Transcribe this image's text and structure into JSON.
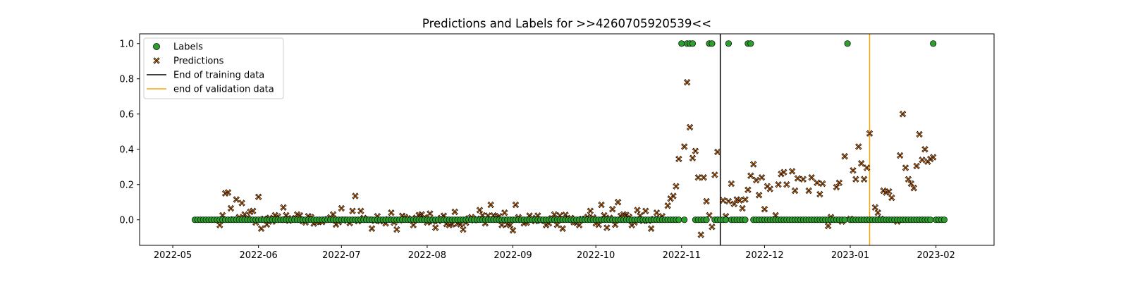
{
  "chart_data": {
    "type": "scatter",
    "title": "Predictions and Labels for >>4260705920539<<",
    "xlabel": "",
    "ylabel": "",
    "x_axis": {
      "type": "date",
      "range": [
        "2022-04-19",
        "2023-02-22"
      ],
      "tick_values": [
        "2022-05-01",
        "2022-06-01",
        "2022-07-01",
        "2022-08-01",
        "2022-09-01",
        "2022-10-01",
        "2022-11-01",
        "2022-12-01",
        "2023-01-01",
        "2023-02-01"
      ],
      "tick_labels": [
        "2022-05",
        "2022-06",
        "2022-07",
        "2022-08",
        "2022-09",
        "2022-10",
        "2022-11",
        "2022-12",
        "2023-01",
        "2023-02"
      ]
    },
    "y_axis": {
      "range": [
        -0.145,
        1.055
      ],
      "tick_values": [
        0.0,
        0.2,
        0.4,
        0.6,
        0.8,
        1.0
      ],
      "tick_labels": [
        "0.0",
        "0.2",
        "0.4",
        "0.6",
        "0.8",
        "1.0"
      ]
    },
    "grid": false,
    "legend_position": "upper-left",
    "legend": [
      {
        "label": "Labels",
        "marker": "circle",
        "color": "#2ca02c"
      },
      {
        "label": "Predictions",
        "marker": "x",
        "color": "#ff7f0e"
      },
      {
        "label": "End of training data",
        "marker": "line",
        "color": "#000000"
      },
      {
        "label": "end of validation data",
        "marker": "line",
        "color": "#ffa500"
      }
    ],
    "labels_series": {
      "start_date": "2022-05-09",
      "end_date": "2023-02-04",
      "baseline_value": 0,
      "points": [
        {
          "date": "2022-11-01",
          "value": 1
        },
        {
          "date": "2022-11-03",
          "value": 1
        },
        {
          "date": "2022-11-04",
          "value": 1
        },
        {
          "date": "2022-11-05",
          "value": 1
        },
        {
          "date": "2022-11-11",
          "value": 1
        },
        {
          "date": "2022-11-12",
          "value": 1
        },
        {
          "date": "2022-11-18",
          "value": 1
        },
        {
          "date": "2022-11-25",
          "value": 1
        },
        {
          "date": "2022-11-26",
          "value": 1
        },
        {
          "date": "2022-12-31",
          "value": 1
        },
        {
          "date": "2023-01-31",
          "value": 1
        }
      ]
    },
    "predictions_series": [
      [
        "2022-05-20",
        0.15
      ],
      [
        "2022-05-21",
        0.155
      ],
      [
        "2022-05-22",
        0.065
      ],
      [
        "2022-05-24",
        0.115
      ],
      [
        "2022-05-26",
        0.095
      ],
      [
        "2022-05-27",
        0.03
      ],
      [
        "2022-05-29",
        0.045
      ],
      [
        "2022-05-30",
        0.05
      ],
      [
        "2022-06-01",
        0.13
      ],
      [
        "2022-06-02",
        -0.05
      ],
      [
        "2022-06-03",
        0.005
      ],
      [
        "2022-06-06",
        -0.01
      ],
      [
        "2022-06-09",
        0.0
      ],
      [
        "2022-06-10",
        0.07
      ],
      [
        "2022-06-12",
        -0.005
      ],
      [
        "2022-06-15",
        0.03
      ],
      [
        "2022-06-18",
        -0.015
      ],
      [
        "2022-06-20",
        0.015
      ],
      [
        "2022-06-23",
        -0.01
      ],
      [
        "2022-06-25",
        0.0
      ],
      [
        "2022-06-28",
        0.03
      ],
      [
        "2022-07-01",
        0.065
      ],
      [
        "2022-07-03",
        -0.005
      ],
      [
        "2022-07-05",
        0.05
      ],
      [
        "2022-07-06",
        0.135
      ],
      [
        "2022-07-08",
        0.05
      ],
      [
        "2022-07-10",
        0.0
      ],
      [
        "2022-07-12",
        -0.05
      ],
      [
        "2022-07-14",
        0.02
      ],
      [
        "2022-07-17",
        -0.02
      ],
      [
        "2022-07-19",
        0.04
      ],
      [
        "2022-07-21",
        -0.055
      ],
      [
        "2022-07-24",
        0.015
      ],
      [
        "2022-07-27",
        -0.03
      ],
      [
        "2022-07-30",
        0.03
      ],
      [
        "2022-08-02",
        0.035
      ],
      [
        "2022-08-04",
        -0.045
      ],
      [
        "2022-08-06",
        0.01
      ],
      [
        "2022-08-09",
        -0.03
      ],
      [
        "2022-08-11",
        0.045
      ],
      [
        "2022-08-14",
        -0.055
      ],
      [
        "2022-08-17",
        0.015
      ],
      [
        "2022-08-20",
        0.055
      ],
      [
        "2022-08-22",
        -0.02
      ],
      [
        "2022-08-24",
        0.085
      ],
      [
        "2022-08-27",
        0.02
      ],
      [
        "2022-08-29",
        0.04
      ],
      [
        "2022-09-01",
        -0.06
      ],
      [
        "2022-09-02",
        0.085
      ],
      [
        "2022-09-05",
        -0.02
      ],
      [
        "2022-09-08",
        0.01
      ],
      [
        "2022-09-11",
        -0.005
      ],
      [
        "2022-09-14",
        -0.02
      ],
      [
        "2022-09-16",
        0.03
      ],
      [
        "2022-09-19",
        -0.05
      ],
      [
        "2022-09-22",
        0.01
      ],
      [
        "2022-09-25",
        -0.03
      ],
      [
        "2022-09-27",
        0.005
      ],
      [
        "2022-09-29",
        0.05
      ],
      [
        "2022-10-01",
        -0.02
      ],
      [
        "2022-10-03",
        0.085
      ],
      [
        "2022-10-05",
        -0.045
      ],
      [
        "2022-10-07",
        0.06
      ],
      [
        "2022-10-09",
        0.1
      ],
      [
        "2022-10-11",
        0.03
      ],
      [
        "2022-10-14",
        -0.03
      ],
      [
        "2022-10-16",
        0.055
      ],
      [
        "2022-10-19",
        0.05
      ],
      [
        "2022-10-21",
        -0.05
      ],
      [
        "2022-10-23",
        0.04
      ],
      [
        "2022-10-25",
        0.02
      ],
      [
        "2022-10-27",
        0.08
      ],
      [
        "2022-10-28",
        0.12
      ],
      [
        "2022-10-29",
        0.135
      ],
      [
        "2022-10-30",
        0.19
      ],
      [
        "2022-10-31",
        0.345
      ],
      [
        "2022-11-02",
        0.415
      ],
      [
        "2022-11-03",
        0.78
      ],
      [
        "2022-11-04",
        0.525
      ],
      [
        "2022-11-05",
        0.35
      ],
      [
        "2022-11-06",
        0.39
      ],
      [
        "2022-11-07",
        0.24
      ],
      [
        "2022-11-08",
        -0.085
      ],
      [
        "2022-11-09",
        0.24
      ],
      [
        "2022-11-10",
        0.105
      ],
      [
        "2022-11-11",
        0.025
      ],
      [
        "2022-11-12",
        -0.04
      ],
      [
        "2022-11-13",
        0.255
      ],
      [
        "2022-11-14",
        0.385
      ],
      [
        "2022-11-16",
        0.11
      ],
      [
        "2022-11-17",
        0.02
      ],
      [
        "2022-11-18",
        0.105
      ],
      [
        "2022-11-19",
        0.205
      ],
      [
        "2022-11-20",
        0.09
      ],
      [
        "2022-11-21",
        0.115
      ],
      [
        "2022-11-22",
        0.11
      ],
      [
        "2022-11-23",
        0.065
      ],
      [
        "2022-11-24",
        0.115
      ],
      [
        "2022-11-25",
        0.17
      ],
      [
        "2022-11-26",
        0.25
      ],
      [
        "2022-11-27",
        0.315
      ],
      [
        "2022-11-28",
        0.225
      ],
      [
        "2022-11-29",
        0.14
      ],
      [
        "2022-11-30",
        0.24
      ],
      [
        "2022-12-01",
        0.06
      ],
      [
        "2022-12-02",
        0.19
      ],
      [
        "2022-12-03",
        0.175
      ],
      [
        "2022-12-05",
        0.025
      ],
      [
        "2022-12-06",
        0.2
      ],
      [
        "2022-12-07",
        0.26
      ],
      [
        "2022-12-08",
        0.27
      ],
      [
        "2022-12-09",
        0.2
      ],
      [
        "2022-12-11",
        0.275
      ],
      [
        "2022-12-12",
        0.165
      ],
      [
        "2022-12-13",
        0.235
      ],
      [
        "2022-12-15",
        0.23
      ],
      [
        "2022-12-17",
        0.165
      ],
      [
        "2022-12-18",
        0.24
      ],
      [
        "2022-12-20",
        0.21
      ],
      [
        "2022-12-21",
        0.145
      ],
      [
        "2022-12-22",
        0.205
      ],
      [
        "2022-12-24",
        -0.035
      ],
      [
        "2022-12-25",
        0.015
      ],
      [
        "2022-12-27",
        0.185
      ],
      [
        "2022-12-28",
        0.21
      ],
      [
        "2022-12-29",
        -0.01
      ],
      [
        "2022-12-30",
        0.36
      ],
      [
        "2023-01-01",
        0.005
      ],
      [
        "2023-01-02",
        0.28
      ],
      [
        "2023-01-03",
        0.23
      ],
      [
        "2023-01-04",
        0.415
      ],
      [
        "2023-01-05",
        0.32
      ],
      [
        "2023-01-06",
        0.23
      ],
      [
        "2023-01-07",
        0.295
      ],
      [
        "2023-01-08",
        0.49
      ],
      [
        "2023-01-10",
        0.07
      ],
      [
        "2023-01-11",
        0.04
      ],
      [
        "2023-01-12",
        0.005
      ],
      [
        "2023-01-13",
        0.165
      ],
      [
        "2023-01-14",
        0.155
      ],
      [
        "2023-01-15",
        0.16
      ],
      [
        "2023-01-16",
        0.125
      ],
      [
        "2023-01-18",
        -0.01
      ],
      [
        "2023-01-19",
        0.365
      ],
      [
        "2023-01-20",
        0.6
      ],
      [
        "2023-01-21",
        0.295
      ],
      [
        "2023-01-22",
        0.23
      ],
      [
        "2023-01-23",
        0.205
      ],
      [
        "2023-01-24",
        0.18
      ],
      [
        "2023-01-25",
        0.305
      ],
      [
        "2023-01-26",
        0.485
      ],
      [
        "2023-01-27",
        0.34
      ],
      [
        "2023-01-28",
        0.4
      ],
      [
        "2023-01-29",
        0.33
      ],
      [
        "2023-01-30",
        0.345
      ],
      [
        "2023-01-31",
        0.355
      ]
    ],
    "predictions_noise": {
      "start_date": "2022-05-18",
      "end_date": "2022-10-25",
      "amplitude": 0.03
    },
    "vertical_lines": [
      {
        "name": "End of training data",
        "date": "2022-11-15",
        "color": "#000000"
      },
      {
        "name": "end of validation data",
        "date": "2023-01-08",
        "color": "#ffa500"
      }
    ]
  }
}
